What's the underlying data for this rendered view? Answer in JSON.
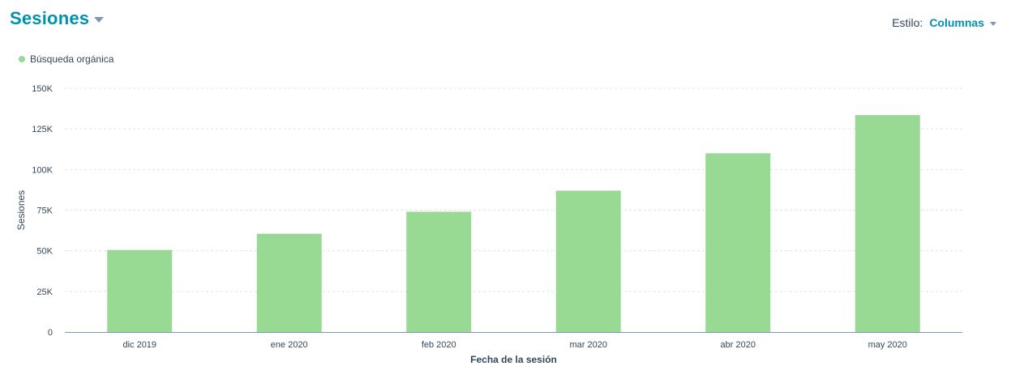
{
  "header": {
    "title": "Sesiones",
    "style_label": "Estilo:",
    "style_value": "Columnas"
  },
  "chart_data": {
    "type": "bar",
    "title": "Sesiones",
    "xlabel": "Fecha de la sesión",
    "ylabel": "Sesiones",
    "categories": [
      "dic 2019",
      "ene 2020",
      "feb 2020",
      "mar 2020",
      "abr 2020",
      "may 2020"
    ],
    "series": [
      {
        "name": "Búsqueda orgánica",
        "color": "#98d993",
        "values": [
          50500,
          60500,
          74000,
          87000,
          110000,
          133500
        ]
      }
    ],
    "ylim": [
      0,
      150000
    ],
    "yticks": [
      0,
      25000,
      50000,
      75000,
      100000,
      125000,
      150000
    ],
    "ytick_labels": [
      "0",
      "25K",
      "50K",
      "75K",
      "100K",
      "125K",
      "150K"
    ],
    "grid": true,
    "legend_position": "top-left"
  }
}
